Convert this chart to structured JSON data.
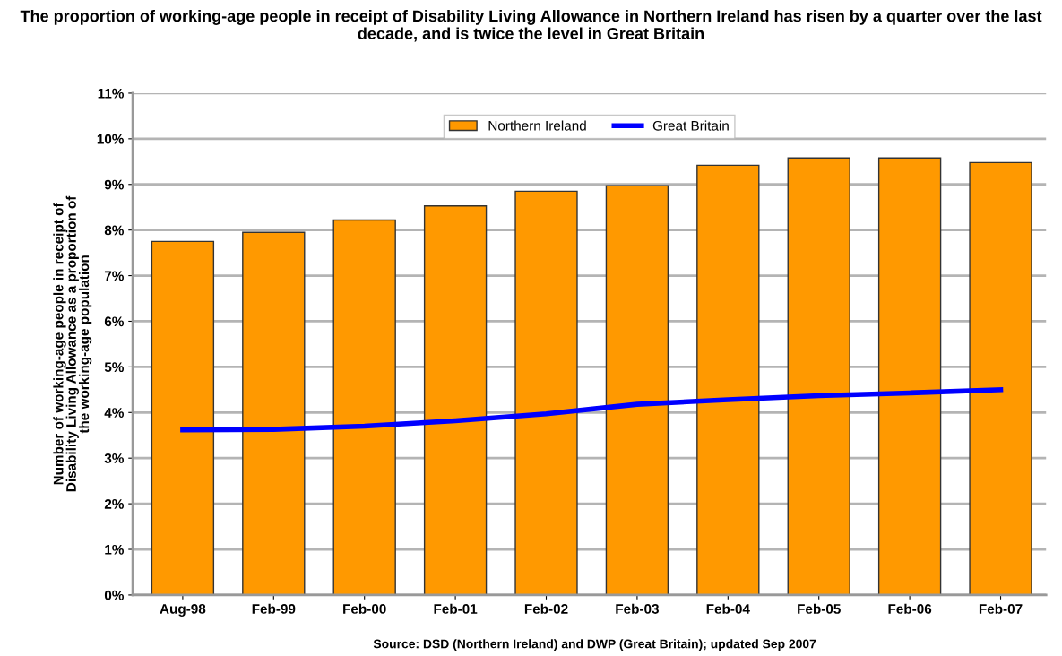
{
  "chart_data": {
    "type": "bar",
    "title": "The proportion of working-age people in receipt of Disability Living Allowance in Northern Ireland has risen by a quarter over the last decade, and is twice the level in Great Britain",
    "ylabel": "Number of working-age people in receipt of\nDisability Living Allowance as a proportion of\nthe working-age population",
    "categories": [
      "Aug-98",
      "Feb-99",
      "Feb-00",
      "Feb-01",
      "Feb-02",
      "Feb-03",
      "Feb-04",
      "Feb-05",
      "Feb-06",
      "Feb-07"
    ],
    "series": [
      {
        "name": "Northern Ireland",
        "color": "#ff9900",
        "values": [
          7.75,
          7.95,
          8.22,
          8.53,
          8.85,
          8.97,
          9.42,
          9.58,
          9.58,
          9.48
        ]
      },
      {
        "name": "Great Britain",
        "type": "line",
        "color": "#0000ff",
        "values": [
          3.62,
          3.63,
          3.7,
          3.82,
          3.97,
          4.18,
          4.28,
          4.37,
          4.43,
          4.5
        ]
      }
    ],
    "ylim": [
      0,
      11
    ],
    "yticks": [
      {
        "value": 0,
        "label": "0%"
      },
      {
        "value": 1,
        "label": "1%"
      },
      {
        "value": 2,
        "label": "2%"
      },
      {
        "value": 3,
        "label": "3%"
      },
      {
        "value": 4,
        "label": "4%"
      },
      {
        "value": 5,
        "label": "5%"
      },
      {
        "value": 6,
        "label": "6%"
      },
      {
        "value": 7,
        "label": "7%"
      },
      {
        "value": 8,
        "label": "8%"
      },
      {
        "value": 9,
        "label": "9%"
      },
      {
        "value": 10,
        "label": "10%"
      },
      {
        "value": 11,
        "label": "11%"
      }
    ],
    "grid": "y",
    "legend": "top",
    "marker": "none",
    "line_style": "solid",
    "annotations": [
      "Source: DSD (Northern Ireland) and DWP (Great Britain); updated Sep 2007"
    ]
  }
}
